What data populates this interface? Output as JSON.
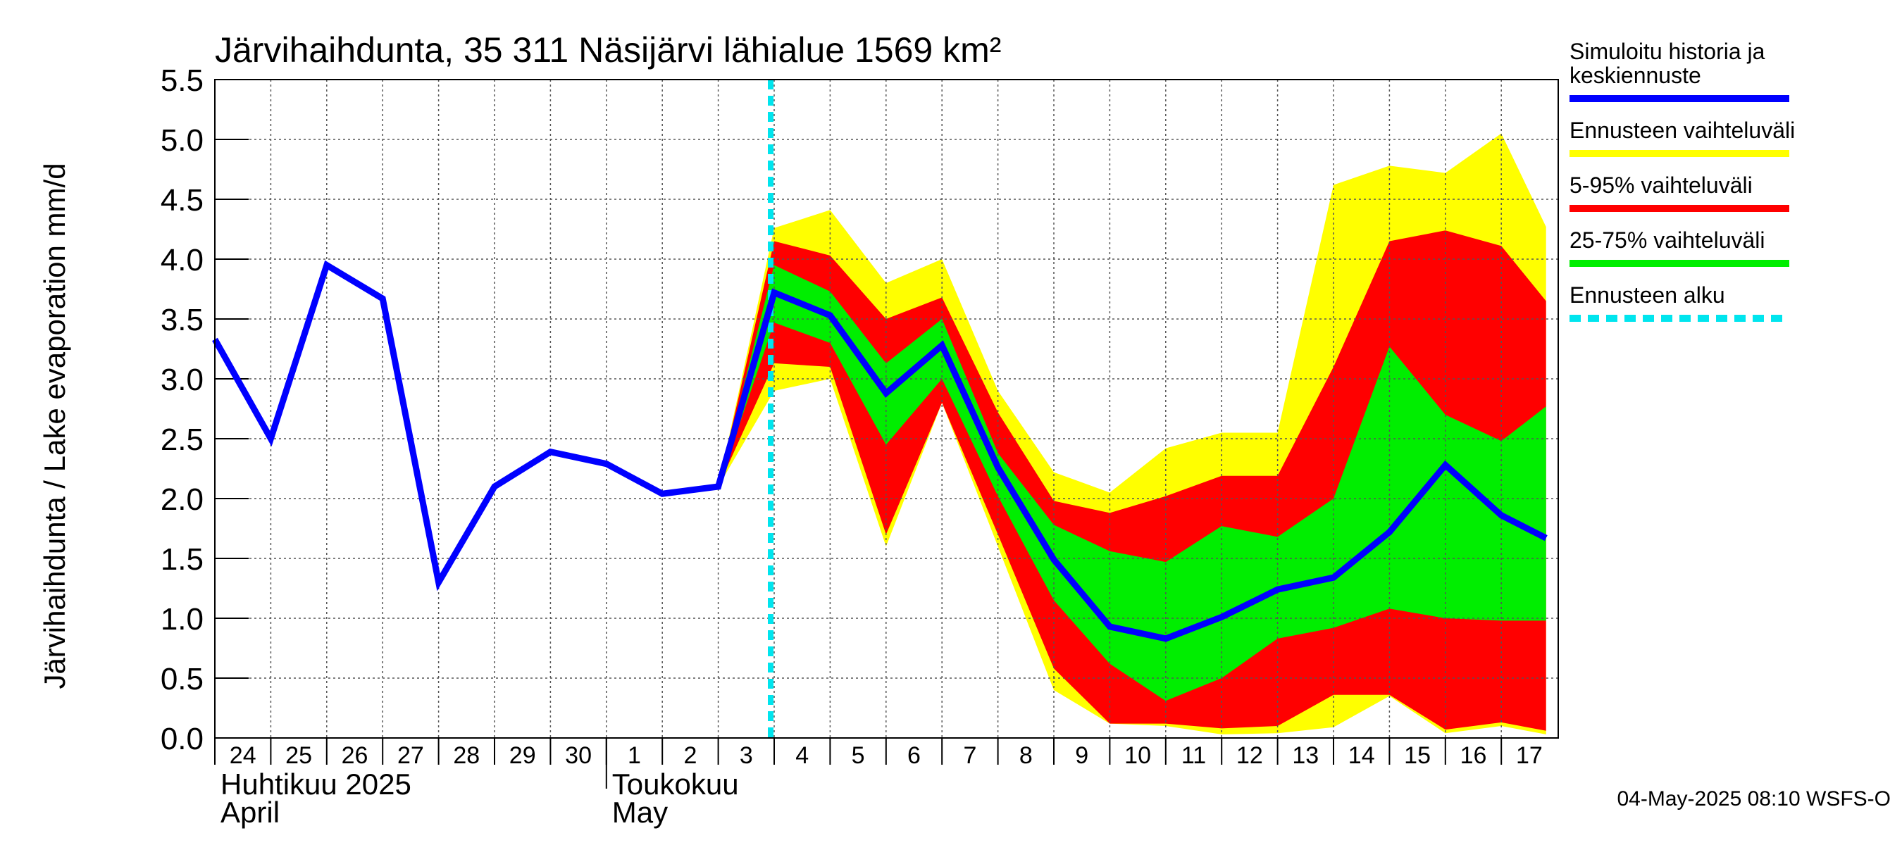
{
  "chart_data": {
    "type": "area",
    "title": "Järvihaihdunta, 35 311 Näsijärvi lähialue 1569 km²",
    "ylabel": "Järvihaihdunta / Lake evaporation   mm/d",
    "ylim": [
      0,
      5.5
    ],
    "yticks": [
      "0.0",
      "0.5",
      "1.0",
      "1.5",
      "2.0",
      "2.5",
      "3.0",
      "3.5",
      "4.0",
      "4.5",
      "5.0",
      "5.5"
    ],
    "x_day_labels": [
      "24",
      "25",
      "26",
      "27",
      "28",
      "29",
      "30",
      "1",
      "2",
      "3",
      "4",
      "5",
      "6",
      "7",
      "8",
      "9",
      "10",
      "11",
      "12",
      "13",
      "14",
      "15",
      "16",
      "17"
    ],
    "months": [
      {
        "fi": "Huhtikuu  2025",
        "en": "April"
      },
      {
        "fi": "Toukokuu",
        "en": "May"
      }
    ],
    "forecast_start_day": 10,
    "series": [
      {
        "name": "Simuloitu historia ja keskiennuste",
        "color": "#0000ff",
        "x": [
          0,
          1,
          2,
          3,
          4,
          5,
          6,
          7,
          8,
          9,
          10,
          11,
          12,
          13,
          14,
          15,
          16,
          17,
          18,
          19,
          20,
          21,
          22,
          23,
          23.8
        ],
        "values": [
          3.33,
          2.5,
          3.95,
          3.67,
          1.3,
          2.1,
          2.39,
          2.29,
          2.04,
          2.1,
          3.72,
          3.53,
          2.88,
          3.28,
          2.26,
          1.49,
          0.93,
          0.83,
          1.01,
          1.24,
          1.34,
          1.72,
          2.28,
          1.86,
          1.67
        ]
      },
      {
        "name": "Ennusteen vaihteluväli",
        "color": "#ffff00",
        "x": [
          9,
          10,
          11,
          12,
          13,
          14,
          15,
          16,
          17,
          18,
          19,
          20,
          21,
          22,
          23,
          23.8
        ],
        "lower": [
          2.1,
          2.9,
          3.0,
          1.6,
          2.8,
          1.6,
          0.4,
          0.12,
          0.1,
          0.03,
          0.04,
          0.09,
          0.35,
          0.04,
          0.1,
          0.03
        ],
        "upper": [
          2.1,
          4.26,
          4.41,
          3.8,
          4.0,
          2.9,
          2.22,
          2.05,
          2.42,
          2.55,
          2.55,
          4.62,
          4.78,
          4.72,
          5.05,
          4.27
        ]
      },
      {
        "name": "5-95% vaihteluväli",
        "color": "#ff0000",
        "x": [
          9,
          10,
          11,
          12,
          13,
          14,
          15,
          16,
          17,
          18,
          19,
          20,
          21,
          22,
          23,
          23.8
        ],
        "lower": [
          2.1,
          3.13,
          3.1,
          1.7,
          2.8,
          1.7,
          0.58,
          0.12,
          0.12,
          0.08,
          0.1,
          0.36,
          0.36,
          0.07,
          0.13,
          0.06
        ],
        "upper": [
          2.1,
          4.15,
          4.03,
          3.5,
          3.68,
          2.72,
          1.98,
          1.88,
          2.02,
          2.19,
          2.19,
          3.1,
          4.15,
          4.24,
          4.11,
          3.65
        ]
      },
      {
        "name": "25-75% vaihteluväli",
        "color": "#00ee00",
        "x": [
          9,
          10,
          11,
          12,
          13,
          14,
          15,
          16,
          17,
          18,
          19,
          20,
          21,
          22,
          23,
          23.8
        ],
        "lower": [
          2.1,
          3.47,
          3.3,
          2.45,
          3.0,
          2.02,
          1.15,
          0.62,
          0.31,
          0.5,
          0.83,
          0.92,
          1.08,
          1.0,
          0.98,
          0.98
        ],
        "upper": [
          2.1,
          3.95,
          3.73,
          3.13,
          3.5,
          2.38,
          1.78,
          1.56,
          1.47,
          1.77,
          1.68,
          2.0,
          3.27,
          2.7,
          2.48,
          2.77
        ]
      }
    ],
    "forecast_line": {
      "name": "Ennusteen alku",
      "color": "#00e5ee"
    }
  },
  "footer": "04-May-2025 08:10 WSFS-O"
}
